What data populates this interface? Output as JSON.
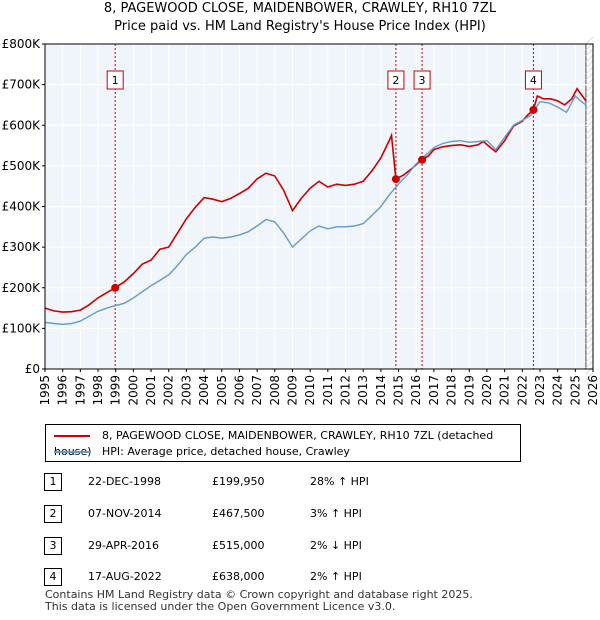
{
  "title": {
    "line1": "8, PAGEWOOD CLOSE, MAIDENBOWER, CRAWLEY, RH10 7ZL",
    "line2": "Price paid vs. HM Land Registry's House Price Index (HPI)"
  },
  "legend": {
    "property_label": "8, PAGEWOOD CLOSE, MAIDENBOWER, CRAWLEY, RH10 7ZL (detached house)",
    "hpi_label": "HPI: Average price, detached house, Crawley"
  },
  "sales": [
    {
      "num": "1",
      "date": "22-DEC-1998",
      "price": "£199,950",
      "hpi": "28% ↑ HPI"
    },
    {
      "num": "2",
      "date": "07-NOV-2014",
      "price": "£467,500",
      "hpi": "3% ↑ HPI"
    },
    {
      "num": "3",
      "date": "29-APR-2016",
      "price": "£515,000",
      "hpi": "2% ↓ HPI"
    },
    {
      "num": "4",
      "date": "17-AUG-2022",
      "price": "£638,000",
      "hpi": "2% ↑ HPI"
    }
  ],
  "footer": {
    "line1": "Contains HM Land Registry data © Crown copyright and database right 2025.",
    "line2": "This data is licensed under the Open Government Licence v3.0."
  },
  "chart_data": {
    "type": "line",
    "title": "8, PAGEWOOD CLOSE, MAIDENBOWER, CRAWLEY, RH10 7ZL — Price paid vs. HM Land Registry's House Price Index (HPI)",
    "xlabel": "",
    "ylabel": "",
    "xlim": [
      1995,
      2026
    ],
    "ylim": [
      0,
      800000
    ],
    "y_ticks": [
      {
        "value": 0,
        "label": "£0"
      },
      {
        "value": 100000,
        "label": "£100K"
      },
      {
        "value": 200000,
        "label": "£200K"
      },
      {
        "value": 300000,
        "label": "£300K"
      },
      {
        "value": 400000,
        "label": "£400K"
      },
      {
        "value": 500000,
        "label": "£500K"
      },
      {
        "value": 600000,
        "label": "£600K"
      },
      {
        "value": 700000,
        "label": "£700K"
      },
      {
        "value": 800000,
        "label": "£800K"
      }
    ],
    "x_ticks": [
      "1995",
      "1996",
      "1997",
      "1998",
      "1999",
      "2000",
      "2001",
      "2002",
      "2003",
      "2004",
      "2005",
      "2006",
      "2007",
      "2008",
      "2009",
      "2010",
      "2011",
      "2012",
      "2013",
      "2014",
      "2015",
      "2016",
      "2017",
      "2018",
      "2019",
      "2020",
      "2021",
      "2022",
      "2023",
      "2024",
      "2025",
      "2026"
    ],
    "grid": true,
    "colors": {
      "property": "#cc0000",
      "hpi": "#6699cc",
      "shade": "#dde6f4",
      "marker": "#cc0000",
      "vline": "#cc0000"
    },
    "series": [
      {
        "name": "8, PAGEWOOD CLOSE, MAIDENBOWER, CRAWLEY, RH10 7ZL (detached house)",
        "points": [
          [
            1995.0,
            150000
          ],
          [
            1995.5,
            143000
          ],
          [
            1996.0,
            140000
          ],
          [
            1996.5,
            141000
          ],
          [
            1997.0,
            145000
          ],
          [
            1997.5,
            158000
          ],
          [
            1998.0,
            175000
          ],
          [
            1998.5,
            188000
          ],
          [
            1998.97,
            199950
          ],
          [
            1999.5,
            215000
          ],
          [
            2000.0,
            235000
          ],
          [
            2000.5,
            258000
          ],
          [
            2001.0,
            268000
          ],
          [
            2001.5,
            295000
          ],
          [
            2002.0,
            300000
          ],
          [
            2002.5,
            335000
          ],
          [
            2003.0,
            370000
          ],
          [
            2003.5,
            398000
          ],
          [
            2004.0,
            422000
          ],
          [
            2004.5,
            418000
          ],
          [
            2005.0,
            412000
          ],
          [
            2005.5,
            420000
          ],
          [
            2006.0,
            432000
          ],
          [
            2006.5,
            445000
          ],
          [
            2007.0,
            468000
          ],
          [
            2007.5,
            482000
          ],
          [
            2008.0,
            475000
          ],
          [
            2008.5,
            440000
          ],
          [
            2009.0,
            390000
          ],
          [
            2009.5,
            420000
          ],
          [
            2010.0,
            445000
          ],
          [
            2010.5,
            462000
          ],
          [
            2011.0,
            448000
          ],
          [
            2011.5,
            455000
          ],
          [
            2012.0,
            452000
          ],
          [
            2012.5,
            455000
          ],
          [
            2013.0,
            462000
          ],
          [
            2013.5,
            488000
          ],
          [
            2014.0,
            520000
          ],
          [
            2014.5,
            565000
          ],
          [
            2014.6,
            575000
          ],
          [
            2014.85,
            467500
          ],
          [
            2015.3,
            478000
          ],
          [
            2015.8,
            495000
          ],
          [
            2016.1,
            507000
          ],
          [
            2016.33,
            515000
          ],
          [
            2016.7,
            525000
          ],
          [
            2017.0,
            540000
          ],
          [
            2017.5,
            547000
          ],
          [
            2018.0,
            550000
          ],
          [
            2018.5,
            552000
          ],
          [
            2019.0,
            548000
          ],
          [
            2019.5,
            552000
          ],
          [
            2019.8,
            560000
          ],
          [
            2020.2,
            545000
          ],
          [
            2020.5,
            535000
          ],
          [
            2021.0,
            562000
          ],
          [
            2021.5,
            598000
          ],
          [
            2022.0,
            610000
          ],
          [
            2022.3,
            625000
          ],
          [
            2022.63,
            638000
          ],
          [
            2022.85,
            672000
          ],
          [
            2023.2,
            665000
          ],
          [
            2023.6,
            665000
          ],
          [
            2024.0,
            660000
          ],
          [
            2024.4,
            650000
          ],
          [
            2024.8,
            665000
          ],
          [
            2025.1,
            690000
          ],
          [
            2025.4,
            672000
          ],
          [
            2025.6,
            660000
          ]
        ]
      },
      {
        "name": "HPI: Average price, detached house, Crawley",
        "points": [
          [
            1995.0,
            115000
          ],
          [
            1995.5,
            112000
          ],
          [
            1996.0,
            110000
          ],
          [
            1996.5,
            112000
          ],
          [
            1997.0,
            118000
          ],
          [
            1997.5,
            130000
          ],
          [
            1998.0,
            142000
          ],
          [
            1998.5,
            150000
          ],
          [
            1999.0,
            156000
          ],
          [
            1999.5,
            162000
          ],
          [
            2000.0,
            175000
          ],
          [
            2000.5,
            190000
          ],
          [
            2001.0,
            205000
          ],
          [
            2001.5,
            218000
          ],
          [
            2002.0,
            232000
          ],
          [
            2002.5,
            255000
          ],
          [
            2003.0,
            282000
          ],
          [
            2003.5,
            300000
          ],
          [
            2004.0,
            322000
          ],
          [
            2004.5,
            325000
          ],
          [
            2005.0,
            322000
          ],
          [
            2005.5,
            325000
          ],
          [
            2006.0,
            330000
          ],
          [
            2006.5,
            338000
          ],
          [
            2007.0,
            352000
          ],
          [
            2007.5,
            368000
          ],
          [
            2008.0,
            362000
          ],
          [
            2008.5,
            335000
          ],
          [
            2009.0,
            300000
          ],
          [
            2009.5,
            320000
          ],
          [
            2010.0,
            340000
          ],
          [
            2010.5,
            352000
          ],
          [
            2011.0,
            345000
          ],
          [
            2011.5,
            350000
          ],
          [
            2012.0,
            350000
          ],
          [
            2012.5,
            352000
          ],
          [
            2013.0,
            358000
          ],
          [
            2013.5,
            378000
          ],
          [
            2014.0,
            400000
          ],
          [
            2014.5,
            430000
          ],
          [
            2015.0,
            455000
          ],
          [
            2015.5,
            478000
          ],
          [
            2016.0,
            505000
          ],
          [
            2016.5,
            525000
          ],
          [
            2017.0,
            545000
          ],
          [
            2017.5,
            555000
          ],
          [
            2018.0,
            560000
          ],
          [
            2018.5,
            562000
          ],
          [
            2019.0,
            558000
          ],
          [
            2019.5,
            560000
          ],
          [
            2020.0,
            562000
          ],
          [
            2020.5,
            540000
          ],
          [
            2021.0,
            570000
          ],
          [
            2021.5,
            600000
          ],
          [
            2022.0,
            612000
          ],
          [
            2022.5,
            625000
          ],
          [
            2023.0,
            658000
          ],
          [
            2023.5,
            655000
          ],
          [
            2024.0,
            645000
          ],
          [
            2024.5,
            632000
          ],
          [
            2025.0,
            672000
          ],
          [
            2025.3,
            660000
          ],
          [
            2025.6,
            650000
          ]
        ]
      }
    ],
    "sales": [
      {
        "label": "1",
        "x": 1998.97,
        "value": 199950
      },
      {
        "label": "2",
        "x": 2014.85,
        "value": 467500
      },
      {
        "label": "3",
        "x": 2016.33,
        "value": 515000
      },
      {
        "label": "4",
        "x": 2022.63,
        "value": 638000
      }
    ]
  }
}
